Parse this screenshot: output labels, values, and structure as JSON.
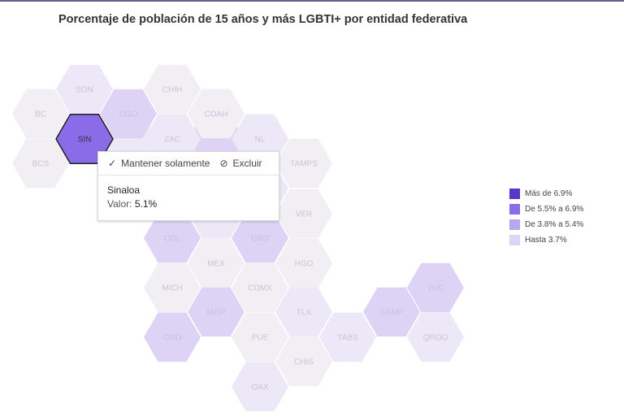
{
  "title": "Porcentaje de población de 15 años y más LGBTI+ por entidad federativa",
  "colors": {
    "level1": "#5c35c9",
    "level2": "#8a6ce8",
    "level3": "#b9a7ec",
    "level4": "#ddd5f5",
    "faded_level3": "#dcd3f5",
    "faded_level4": "#ece8f8",
    "faded_level5": "#f1eff4"
  },
  "states": [
    {
      "code": "SON"
    },
    {
      "code": "CHIH"
    },
    {
      "code": "BC"
    },
    {
      "code": "DGO"
    },
    {
      "code": "COAH"
    },
    {
      "code": "SIN"
    },
    {
      "code": "ZAC"
    },
    {
      "code": "NL"
    },
    {
      "code": "BCS"
    },
    {
      "code": "TAMPS"
    },
    {
      "code": "VER"
    },
    {
      "code": "COL"
    },
    {
      "code": "GRO"
    },
    {
      "code": "MEX"
    },
    {
      "code": "HGO"
    },
    {
      "code": "MICH"
    },
    {
      "code": "CDMX"
    },
    {
      "code": "YUC"
    },
    {
      "code": "MOR"
    },
    {
      "code": "TLX"
    },
    {
      "code": "CAMP"
    },
    {
      "code": "GRO"
    },
    {
      "code": "PUE"
    },
    {
      "code": "TABS"
    },
    {
      "code": "QROO"
    },
    {
      "code": "CHIS"
    },
    {
      "code": "OAX"
    }
  ],
  "tooltip": {
    "keep_label": "Mantener solamente",
    "exclude_label": "Excluir",
    "state_name": "Sinaloa",
    "value_label": "Valor:",
    "value": "5.1%"
  },
  "legend": [
    {
      "label": "Más de 6.9%",
      "color": "#5c35c9"
    },
    {
      "label": "De 5.5% a 6.9%",
      "color": "#8a6ce8"
    },
    {
      "label": "De 3.8% a 5.4%",
      "color": "#b9a7ec"
    },
    {
      "label": "Hasta 3.7%",
      "color": "#ddd5f5"
    }
  ]
}
